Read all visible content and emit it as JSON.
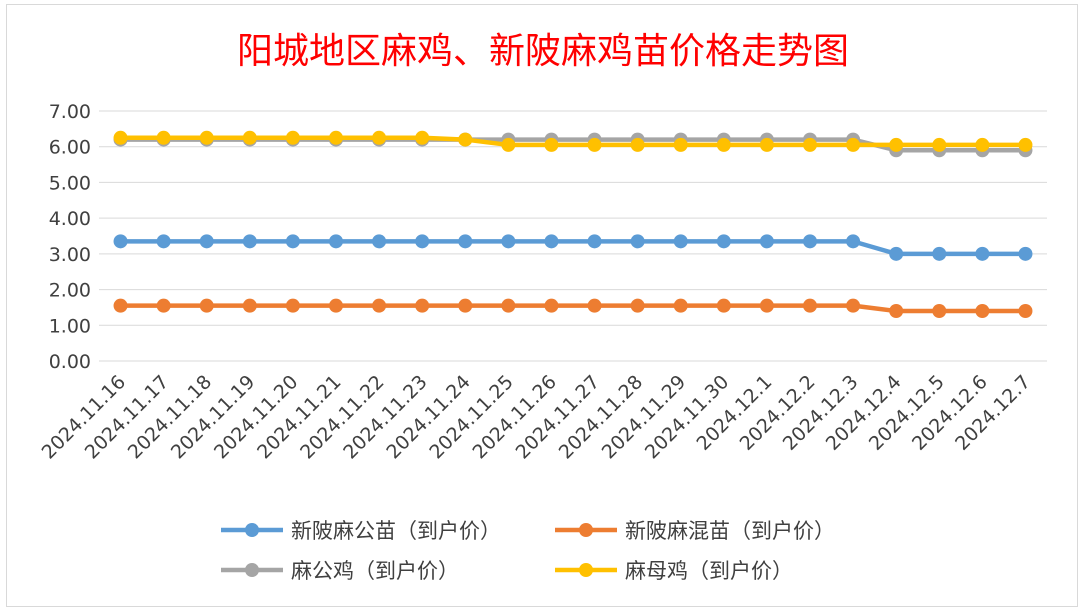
{
  "chart_data": {
    "type": "line",
    "title": "阳城地区麻鸡、新陂麻鸡苗价格走势图",
    "xlabel": "",
    "ylabel": "",
    "ylim": [
      0,
      7
    ],
    "y_ticks": [
      "0.00",
      "1.00",
      "2.00",
      "3.00",
      "4.00",
      "5.00",
      "6.00",
      "7.00"
    ],
    "grid": true,
    "legend_position": "bottom",
    "x": [
      "2024.11.16",
      "2024.11.17",
      "2024.11.18",
      "2024.11.19",
      "2024.11.20",
      "2024.11.21",
      "2024.11.22",
      "2024.11.23",
      "2024.11.24",
      "2024.11.25",
      "2024.11.26",
      "2024.11.27",
      "2024.11.28",
      "2024.11.29",
      "2024.11.30",
      "2024.12.1",
      "2024.12.2",
      "2024.12.3",
      "2024.12.4",
      "2024.12.5",
      "2024.12.6",
      "2024.12.7"
    ],
    "series": [
      {
        "name": "新陂麻公苗（到户价）",
        "color": "#5b9bd5",
        "values": [
          3.35,
          3.35,
          3.35,
          3.35,
          3.35,
          3.35,
          3.35,
          3.35,
          3.35,
          3.35,
          3.35,
          3.35,
          3.35,
          3.35,
          3.35,
          3.35,
          3.35,
          3.35,
          3.0,
          3.0,
          3.0,
          3.0
        ]
      },
      {
        "name": "新陂麻混苗（到户价）",
        "color": "#ed7d31",
        "values": [
          1.55,
          1.55,
          1.55,
          1.55,
          1.55,
          1.55,
          1.55,
          1.55,
          1.55,
          1.55,
          1.55,
          1.55,
          1.55,
          1.55,
          1.55,
          1.55,
          1.55,
          1.55,
          1.4,
          1.4,
          1.4,
          1.4
        ]
      },
      {
        "name": "麻公鸡（到户价）",
        "color": "#a5a5a5",
        "values": [
          6.2,
          6.2,
          6.2,
          6.2,
          6.2,
          6.2,
          6.2,
          6.2,
          6.2,
          6.2,
          6.2,
          6.2,
          6.2,
          6.2,
          6.2,
          6.2,
          6.2,
          6.2,
          5.9,
          5.9,
          5.9,
          5.9
        ]
      },
      {
        "name": "麻母鸡（到户价）",
        "color": "#ffc000",
        "values": [
          6.25,
          6.25,
          6.25,
          6.25,
          6.25,
          6.25,
          6.25,
          6.25,
          6.2,
          6.05,
          6.05,
          6.05,
          6.05,
          6.05,
          6.05,
          6.05,
          6.05,
          6.05,
          6.05,
          6.05,
          6.05,
          6.05
        ]
      }
    ]
  }
}
